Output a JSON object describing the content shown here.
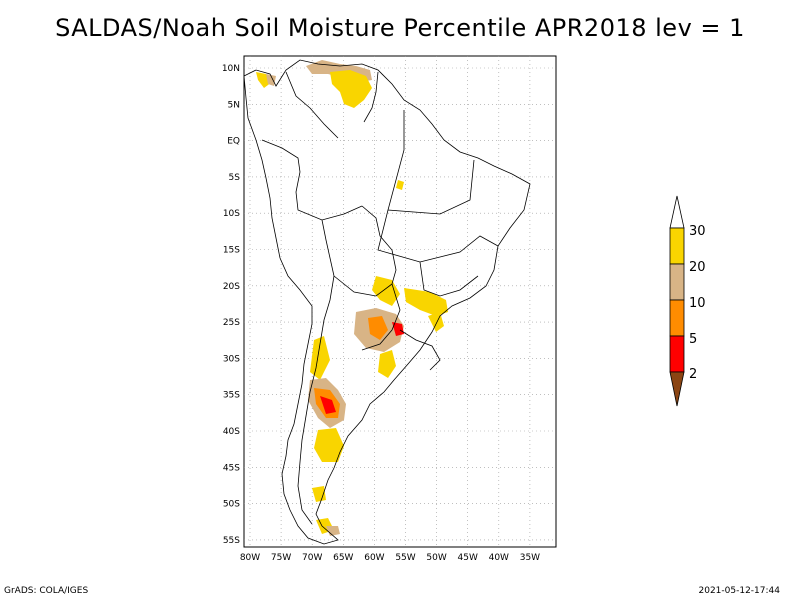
{
  "title": "SALDAS/Noah Soil Moisture Percentile APR2018 lev = 1",
  "lat_labels": [
    "10N",
    "5N",
    "EQ",
    "5S",
    "10S",
    "15S",
    "20S",
    "25S",
    "30S",
    "35S",
    "40S",
    "45S",
    "50S",
    "55S"
  ],
  "lon_labels": [
    "80W",
    "75W",
    "70W",
    "65W",
    "60W",
    "55W",
    "50W",
    "45W",
    "40W",
    "35W"
  ],
  "colorbar": {
    "labels": [
      "30",
      "20",
      "10",
      "5",
      "2"
    ],
    "colors": {
      "above30": "#ffffff",
      "b20_30": "#f9d500",
      "b10_20": "#d8b486",
      "b5_10": "#ff8c00",
      "b2_5": "#ff0000",
      "below2": "#8b4513"
    }
  },
  "footer": {
    "left": "GrADS: COLA/IGES",
    "right": "2021-05-12-17:44"
  }
}
